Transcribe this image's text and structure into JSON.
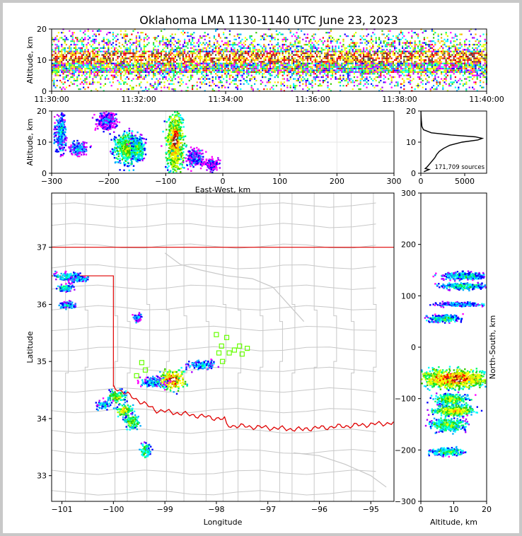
{
  "title": "Oklahoma LMA 1130-1140 UTC June 23, 2023",
  "chart_data": [
    {
      "panel": "time-height",
      "type": "heatmap",
      "ylabel": "Altitude, km",
      "xticks": [
        "11:30:00",
        "11:32:00",
        "11:34:00",
        "11:36:00",
        "11:38:00",
        "11:40:00"
      ],
      "xlim": [
        "11:30:00",
        "11:40:00"
      ],
      "ylim": [
        0,
        20
      ],
      "yticks": [
        "0",
        "10",
        "20"
      ],
      "dense_altitude_band_km": [
        6,
        13
      ]
    },
    {
      "panel": "east-west-altitude",
      "type": "heatmap",
      "xlabel": "East-West, km",
      "ylabel": "Altitude, km",
      "xlim": [
        -300,
        300
      ],
      "ylim": [
        0,
        20
      ],
      "xticks": [
        "−300",
        "−200",
        "−100",
        "0",
        "100",
        "200",
        "300"
      ],
      "yticks": [
        "0",
        "10",
        "20"
      ],
      "grid": true,
      "clusters": [
        {
          "x": -285,
          "y": 13,
          "w": 20,
          "h": 12,
          "intensity": 0.3
        },
        {
          "x": -255,
          "y": 8,
          "w": 30,
          "h": 4,
          "intensity": 0.25
        },
        {
          "x": -205,
          "y": 17,
          "w": 35,
          "h": 6,
          "intensity": 0.2
        },
        {
          "x": -170,
          "y": 8,
          "w": 45,
          "h": 10,
          "intensity": 0.55
        },
        {
          "x": -150,
          "y": 8,
          "w": 25,
          "h": 8,
          "intensity": 0.45
        },
        {
          "x": -85,
          "y": 10,
          "w": 30,
          "h": 20,
          "intensity": 0.75
        },
        {
          "x": -85,
          "y": 11,
          "w": 12,
          "h": 8,
          "intensity": 1.0
        },
        {
          "x": -50,
          "y": 5,
          "w": 30,
          "h": 6,
          "intensity": 0.2
        },
        {
          "x": -20,
          "y": 3,
          "w": 25,
          "h": 4,
          "intensity": 0.15
        }
      ]
    },
    {
      "panel": "altitude-histogram",
      "type": "line",
      "xlim": [
        0,
        7500
      ],
      "ylim": [
        0,
        20
      ],
      "xticks": [
        "0",
        "5000"
      ],
      "yticks": [
        "0",
        "10",
        "20"
      ],
      "annotation": "171,709 sources",
      "profile": [
        {
          "alt": 0.5,
          "count": 350
        },
        {
          "alt": 1.2,
          "count": 950
        },
        {
          "alt": 1.5,
          "count": 500
        },
        {
          "alt": 2,
          "count": 700
        },
        {
          "alt": 3,
          "count": 1000
        },
        {
          "alt": 4,
          "count": 1300
        },
        {
          "alt": 5,
          "count": 1600
        },
        {
          "alt": 6,
          "count": 1800
        },
        {
          "alt": 7,
          "count": 2100
        },
        {
          "alt": 8,
          "count": 2600
        },
        {
          "alt": 9,
          "count": 3300
        },
        {
          "alt": 10,
          "count": 4700
        },
        {
          "alt": 10.7,
          "count": 6500
        },
        {
          "alt": 11.2,
          "count": 7000
        },
        {
          "alt": 11.7,
          "count": 6200
        },
        {
          "alt": 12.3,
          "count": 3500
        },
        {
          "alt": 13,
          "count": 1200
        },
        {
          "alt": 14,
          "count": 300
        },
        {
          "alt": 15,
          "count": 120
        },
        {
          "alt": 17,
          "count": 60
        },
        {
          "alt": 19,
          "count": 20
        },
        {
          "alt": 20,
          "count": 5
        }
      ]
    },
    {
      "panel": "plan-view-map",
      "type": "heatmap",
      "xlabel": "Longitude",
      "ylabel": "Latitude",
      "xlim": [
        -101.2,
        -94.55
      ],
      "ylim": [
        32.55,
        37.95
      ],
      "xticks": [
        "−101",
        "−100",
        "−99",
        "−98",
        "−97",
        "−96",
        "−95"
      ],
      "yticks": [
        "33",
        "34",
        "35",
        "36",
        "37"
      ],
      "clusters": [
        {
          "lon": -100.9,
          "lat": 36.5,
          "w": 0.6,
          "h": 0.15,
          "intensity": 0.35
        },
        {
          "lon": -100.95,
          "lat": 36.3,
          "w": 0.3,
          "h": 0.12,
          "intensity": 0.4
        },
        {
          "lon": -100.7,
          "lat": 36.45,
          "w": 0.4,
          "h": 0.12,
          "intensity": 0.3
        },
        {
          "lon": -100.9,
          "lat": 36.0,
          "w": 0.35,
          "h": 0.12,
          "intensity": 0.3
        },
        {
          "lon": -99.55,
          "lat": 35.78,
          "w": 0.15,
          "h": 0.15,
          "intensity": 0.25
        },
        {
          "lon": -98.85,
          "lat": 34.7,
          "w": 0.5,
          "h": 0.35,
          "intensity": 0.8
        },
        {
          "lon": -98.85,
          "lat": 34.7,
          "w": 0.2,
          "h": 0.12,
          "intensity": 1.0
        },
        {
          "lon": -99.25,
          "lat": 34.65,
          "w": 0.5,
          "h": 0.18,
          "intensity": 0.3
        },
        {
          "lon": -98.3,
          "lat": 34.95,
          "w": 0.6,
          "h": 0.15,
          "intensity": 0.3
        },
        {
          "lon": -99.95,
          "lat": 34.38,
          "w": 0.35,
          "h": 0.25,
          "intensity": 0.55
        },
        {
          "lon": -99.8,
          "lat": 34.15,
          "w": 0.3,
          "h": 0.2,
          "intensity": 0.65
        },
        {
          "lon": -99.65,
          "lat": 33.95,
          "w": 0.3,
          "h": 0.25,
          "intensity": 0.5
        },
        {
          "lon": -99.4,
          "lat": 33.45,
          "w": 0.2,
          "h": 0.25,
          "intensity": 0.45
        },
        {
          "lon": -100.2,
          "lat": 34.25,
          "w": 0.3,
          "h": 0.15,
          "intensity": 0.3
        }
      ],
      "stations": [
        [
          -98.0,
          35.47
        ],
        [
          -97.8,
          35.42
        ],
        [
          -97.9,
          35.27
        ],
        [
          -97.65,
          35.2
        ],
        [
          -97.75,
          35.15
        ],
        [
          -97.5,
          35.13
        ],
        [
          -97.4,
          35.23
        ],
        [
          -97.55,
          35.27
        ],
        [
          -97.88,
          35.0
        ],
        [
          -99.45,
          34.98
        ],
        [
          -99.38,
          34.85
        ],
        [
          -99.55,
          34.75
        ],
        [
          -97.95,
          35.15
        ]
      ],
      "state_border_color": "#e00000",
      "county_line_color": "#c8c8c8",
      "station_color": "#66ff00"
    },
    {
      "panel": "altitude-north-south",
      "type": "heatmap",
      "xlabel": "Altitude, km",
      "ylabel": "North-South, km",
      "xlim": [
        0,
        20
      ],
      "ylim": [
        -300,
        300
      ],
      "xticks": [
        "0",
        "10",
        "20"
      ],
      "yticks": [
        "300",
        "200",
        "100",
        "0",
        "−100",
        "−200",
        "−300"
      ],
      "clusters": [
        {
          "x": 13,
          "y": 140,
          "w": 14,
          "h": 15,
          "intensity": 0.35
        },
        {
          "x": 13,
          "y": 120,
          "w": 14,
          "h": 12,
          "intensity": 0.4
        },
        {
          "x": 12,
          "y": 85,
          "w": 14,
          "h": 8,
          "intensity": 0.3
        },
        {
          "x": 7,
          "y": 57,
          "w": 10,
          "h": 14,
          "intensity": 0.4
        },
        {
          "x": 10,
          "y": -60,
          "w": 20,
          "h": 35,
          "intensity": 0.8
        },
        {
          "x": 11,
          "y": -63,
          "w": 6,
          "h": 10,
          "intensity": 1.0
        },
        {
          "x": 9,
          "y": -100,
          "w": 10,
          "h": 20,
          "intensity": 0.55
        },
        {
          "x": 10,
          "y": -122,
          "w": 12,
          "h": 20,
          "intensity": 0.65
        },
        {
          "x": 8,
          "y": -150,
          "w": 10,
          "h": 25,
          "intensity": 0.5
        },
        {
          "x": 8,
          "y": -202,
          "w": 10,
          "h": 14,
          "intensity": 0.45
        }
      ]
    }
  ]
}
